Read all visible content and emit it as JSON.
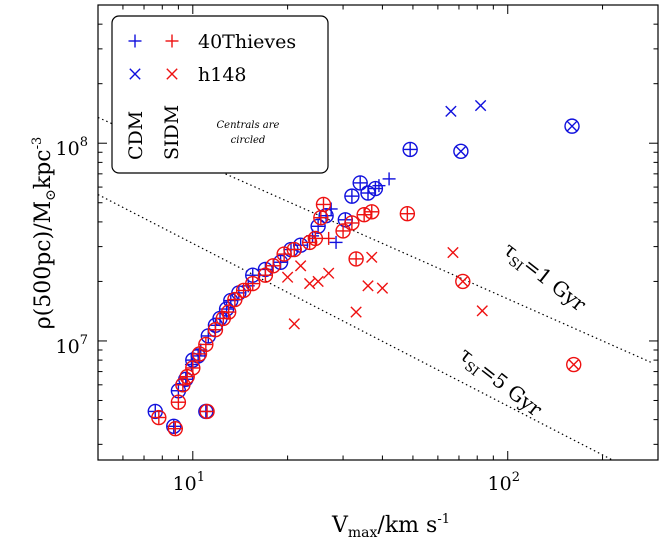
{
  "chart_data": {
    "type": "scatter",
    "xscale": "log",
    "yscale": "log",
    "xlim": [
      5,
      300
    ],
    "ylim": [
      2500000,
      500000000
    ],
    "xlabel": "V",
    "xlabel_sub": "max",
    "xlabel_units": "/km s",
    "xlabel_exp": "-1",
    "ylabel": "ρ(500pc)/M",
    "ylabel_sun": "⊙",
    "ylabel_units": "kpc",
    "ylabel_exp": "-3",
    "x_ticks": [
      {
        "value": 10,
        "base": "10",
        "exp": "1"
      },
      {
        "value": 100,
        "base": "10",
        "exp": "2"
      }
    ],
    "y_ticks": [
      {
        "value": 10000000,
        "base": "10",
        "exp": "7"
      },
      {
        "value": 100000000,
        "base": "10",
        "exp": "8"
      }
    ],
    "colors": {
      "cdm": "#1010dd",
      "sidm": "#ee1111"
    },
    "legend": {
      "placement": "top-left",
      "rows": [
        "40Thieves",
        "h148"
      ],
      "columns": [
        "CDM",
        "SIDM"
      ],
      "note_line1": "Centrals are",
      "note_line2": "circled"
    },
    "reference_lines": [
      {
        "label": "τ",
        "label_sub": "SI",
        "label_rest": "=1 Gyr",
        "points": [
          [
            5,
            135000000
          ],
          [
            290,
            7700000
          ]
        ]
      },
      {
        "label": "τ",
        "label_sub": "SI",
        "label_rest": "=5 Gyr",
        "points": [
          [
            5,
            55000000
          ],
          [
            215,
            2500000
          ]
        ]
      }
    ],
    "series": [
      {
        "suite": "40Thieves",
        "model": "CDM",
        "marker": "plus",
        "points": [
          [
            7.6,
            4400000.0,
            1
          ],
          [
            8.7,
            3700000.0,
            1
          ],
          [
            9.0,
            5600000.0,
            1
          ],
          [
            9.5,
            6400000.0,
            1
          ],
          [
            9.9,
            7600000.0,
            0
          ],
          [
            10.0,
            8000000.0,
            1
          ],
          [
            10.4,
            8400000.0,
            1
          ],
          [
            10.6,
            9000000.0,
            0
          ],
          [
            11.0,
            4400000.0,
            1
          ],
          [
            11.2,
            10600000.0,
            1
          ],
          [
            11.8,
            12000000.0,
            1
          ],
          [
            12.2,
            13000000.0,
            1
          ],
          [
            12.8,
            14500000.0,
            1
          ],
          [
            13.2,
            16000000.0,
            1
          ],
          [
            14.0,
            17500000.0,
            1
          ],
          [
            15.0,
            19000000.0,
            0
          ],
          [
            15.5,
            21500000.0,
            1
          ],
          [
            17.0,
            23000000.0,
            1
          ],
          [
            19.0,
            25000000.0,
            1
          ],
          [
            20.5,
            29000000.0,
            1
          ],
          [
            22.0,
            30500000.0,
            1
          ],
          [
            24.0,
            34000000.0,
            0
          ],
          [
            25.0,
            38000000.0,
            1
          ],
          [
            26.5,
            43000000.0,
            1
          ],
          [
            27.5,
            46500000.0,
            0
          ],
          [
            28.5,
            31500000.0,
            0
          ],
          [
            30.5,
            41000000.0,
            1
          ],
          [
            32.0,
            54000000.0,
            1
          ],
          [
            34.0,
            63000000.0,
            1
          ],
          [
            36.0,
            56000000.0,
            1
          ],
          [
            38.0,
            59000000.0,
            1
          ],
          [
            39.0,
            61000000.0,
            0
          ],
          [
            42.0,
            66000000.0,
            0
          ],
          [
            49.0,
            93000000.0,
            1
          ]
        ]
      },
      {
        "suite": "h148",
        "model": "CDM",
        "marker": "cross",
        "points": [
          [
            66,
            145000000.0,
            0
          ],
          [
            71,
            91000000.0,
            1
          ],
          [
            82,
            155000000.0,
            0
          ],
          [
            160,
            122000000.0,
            1
          ]
        ]
      },
      {
        "suite": "40Thieves",
        "model": "SIDM",
        "marker": "plus",
        "points": [
          [
            7.8,
            4100000.0,
            1
          ],
          [
            8.8,
            3600000.0,
            1
          ],
          [
            9.0,
            4900000.0,
            1
          ],
          [
            9.3,
            6000000.0,
            1
          ],
          [
            9.6,
            6600000.0,
            1
          ],
          [
            10.0,
            7300000.0,
            1
          ],
          [
            10.5,
            8600000.0,
            1
          ],
          [
            11.0,
            9600000.0,
            1
          ],
          [
            11.1,
            4400000.0,
            1
          ],
          [
            11.8,
            11400000.0,
            1
          ],
          [
            12.5,
            13000000.0,
            1
          ],
          [
            13.0,
            14000000.0,
            1
          ],
          [
            13.6,
            16200000.0,
            1
          ],
          [
            14.5,
            18000000.0,
            1
          ],
          [
            15.5,
            19500000.0,
            1
          ],
          [
            17.0,
            21500000.0,
            1
          ],
          [
            18.0,
            24000000.0,
            1
          ],
          [
            19.5,
            27500000.0,
            1
          ],
          [
            21.0,
            29000000.0,
            1
          ],
          [
            23.5,
            31500000.0,
            1
          ],
          [
            24.5,
            33000000.0,
            1
          ],
          [
            25.5,
            42000000.0,
            1
          ],
          [
            26.0,
            49000000.0,
            1
          ],
          [
            27.0,
            33000000.0,
            0
          ],
          [
            30.0,
            36000000.0,
            1
          ],
          [
            32.0,
            39500000.0,
            1
          ],
          [
            33.0,
            26000000.0,
            1
          ],
          [
            35.0,
            43500000.0,
            1
          ],
          [
            37.0,
            45000000.0,
            1
          ],
          [
            48.0,
            44000000.0,
            1
          ]
        ]
      },
      {
        "suite": "h148",
        "model": "SIDM",
        "marker": "cross",
        "points": [
          [
            20.0,
            21000000.0,
            0
          ],
          [
            21.0,
            12200000.0,
            0
          ],
          [
            22.0,
            24000000.0,
            0
          ],
          [
            23.5,
            19500000.0,
            0
          ],
          [
            25.0,
            20000000.0,
            0
          ],
          [
            27.0,
            22000000.0,
            0
          ],
          [
            33.0,
            14000000.0,
            0
          ],
          [
            36.0,
            19000000.0,
            0
          ],
          [
            37.0,
            26500000.0,
            0
          ],
          [
            40.0,
            18500000.0,
            0
          ],
          [
            67.0,
            28000000.0,
            0
          ],
          [
            72.0,
            20000000.0,
            1
          ],
          [
            83.0,
            14200000.0,
            0
          ],
          [
            162.0,
            7600000.0,
            1
          ]
        ]
      }
    ]
  }
}
